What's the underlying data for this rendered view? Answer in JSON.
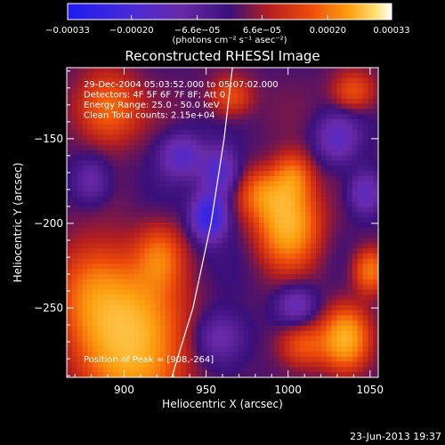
{
  "chart_data": {
    "type": "heatmap",
    "title": "Reconstructed RHESSI Image",
    "xlabel": "Heliocentric X (arcsec)",
    "ylabel": "Heliocentric Y (arcsec)",
    "xlim": [
      865,
      1055
    ],
    "ylim": [
      -291,
      -108
    ],
    "xticks": [
      900,
      950,
      1000,
      1050
    ],
    "xtick_labels": [
      "900",
      "950",
      "1000",
      "1050"
    ],
    "yticks": [
      -150,
      -200,
      -250
    ],
    "ytick_labels": [
      "−150",
      "−200",
      "−250"
    ],
    "colorbar": {
      "min": -0.00033,
      "max": 0.00033,
      "ticks": [
        -0.00033,
        -0.0002,
        -6.6e-05,
        6.6e-05,
        0.0002,
        0.00033
      ],
      "tick_labels": [
        "−0.00033",
        "−0.00020",
        "−6.6e−05",
        "6.6e−05",
        "0.00020",
        "0.00033"
      ],
      "unit_label": "(photons cm⁻² s⁻¹ asec⁻²)",
      "colormap": "blue-purple-red-yellow-white"
    },
    "annotations": [
      "29-Dec-2004 05:03:52.000 to 05:07:02.000",
      "Detectors: 4F 5F 6F 7F 8F; Att 0",
      "Energy Range: 25.0 - 50.0 keV",
      "Clean     Total counts: 2.15e+04"
    ],
    "peak_label": "Position of Peak = [908,-264]",
    "peak": [
      908,
      -264
    ],
    "limb_points": [
      [
        929,
        -291
      ],
      [
        942,
        -250
      ],
      [
        953,
        -200
      ],
      [
        961,
        -150
      ],
      [
        966,
        -108
      ]
    ],
    "hot_spots": [
      {
        "x": 905,
        "y": -268,
        "sx": 20,
        "sy": 28,
        "v": 1.1
      },
      {
        "x": 880,
        "y": -240,
        "sx": 14,
        "sy": 20,
        "v": 0.5
      },
      {
        "x": 1000,
        "y": -200,
        "sx": 12,
        "sy": 16,
        "v": 1.0
      },
      {
        "x": 985,
        "y": -183,
        "sx": 10,
        "sy": 10,
        "v": 0.55
      },
      {
        "x": 1003,
        "y": -173,
        "sx": 8,
        "sy": 10,
        "v": 0.55
      },
      {
        "x": 1035,
        "y": -268,
        "sx": 9,
        "sy": 12,
        "v": 0.9
      },
      {
        "x": 1050,
        "y": -228,
        "sx": 7,
        "sy": 9,
        "v": 0.65
      },
      {
        "x": 1010,
        "y": -272,
        "sx": 11,
        "sy": 9,
        "v": 0.5
      },
      {
        "x": 922,
        "y": -220,
        "sx": 9,
        "sy": 12,
        "v": 0.45
      },
      {
        "x": 890,
        "y": -132,
        "sx": 13,
        "sy": 14,
        "v": 0.6
      },
      {
        "x": 965,
        "y": -125,
        "sx": 9,
        "sy": 8,
        "v": 0.45
      },
      {
        "x": 1040,
        "y": -122,
        "sx": 9,
        "sy": 8,
        "v": 0.45
      }
    ],
    "cold_spots": [
      {
        "x": 952,
        "y": -196,
        "sx": 7,
        "sy": 9,
        "v": -1.0
      },
      {
        "x": 958,
        "y": -170,
        "sx": 8,
        "sy": 10,
        "v": -0.6
      },
      {
        "x": 935,
        "y": -160,
        "sx": 9,
        "sy": 9,
        "v": -0.5
      },
      {
        "x": 1030,
        "y": -150,
        "sx": 9,
        "sy": 10,
        "v": -0.45
      },
      {
        "x": 1047,
        "y": -182,
        "sx": 7,
        "sy": 9,
        "v": -0.5
      },
      {
        "x": 958,
        "y": -268,
        "sx": 11,
        "sy": 11,
        "v": -0.4
      },
      {
        "x": 1005,
        "y": -248,
        "sx": 8,
        "sy": 8,
        "v": -0.4
      },
      {
        "x": 880,
        "y": -175,
        "sx": 8,
        "sy": 10,
        "v": -0.35
      }
    ]
  },
  "footer": {
    "timestamp": "23-Jun-2013 19:37"
  }
}
